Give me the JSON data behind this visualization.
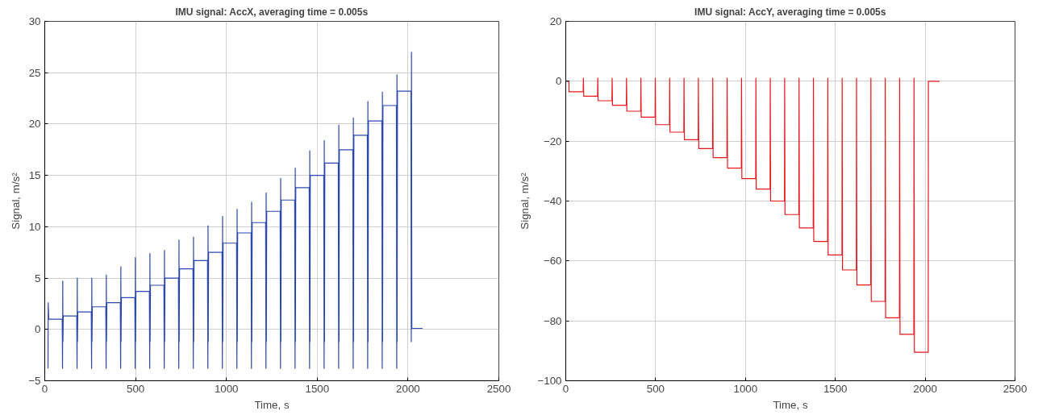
{
  "chart_data": [
    {
      "type": "line",
      "title": "IMU signal: AccX, averaging time = 0.005s",
      "xlabel": "Time, s",
      "ylabel": "Signal, m/s²",
      "xlim": [
        0,
        2500
      ],
      "xticks": [
        0,
        500,
        1000,
        1500,
        2000,
        2500
      ],
      "ylim": [
        -5,
        30
      ],
      "yticks": [
        -5,
        0,
        5,
        10,
        15,
        20,
        25,
        30
      ],
      "grid": true,
      "series": [
        {
          "color": "#2b48b0",
          "x": [
            18,
            19,
            22,
            96,
            98,
            99,
            100,
            102,
            176,
            178,
            179,
            180,
            182,
            256,
            258,
            259,
            260,
            262,
            336,
            338,
            339,
            340,
            342,
            416,
            418,
            419,
            420,
            422,
            496,
            498,
            499,
            500,
            502,
            576,
            578,
            579,
            580,
            582,
            656,
            658,
            659,
            660,
            662,
            736,
            738,
            739,
            740,
            742,
            816,
            818,
            819,
            820,
            822,
            896,
            898,
            899,
            900,
            902,
            976,
            978,
            979,
            980,
            982,
            1056,
            1058,
            1059,
            1060,
            1062,
            1136,
            1138,
            1139,
            1140,
            1142,
            1216,
            1218,
            1219,
            1220,
            1222,
            1296,
            1298,
            1299,
            1300,
            1302,
            1376,
            1378,
            1379,
            1380,
            1382,
            1456,
            1458,
            1459,
            1460,
            1462,
            1536,
            1538,
            1539,
            1540,
            1542,
            1616,
            1618,
            1619,
            1620,
            1622,
            1696,
            1698,
            1699,
            1700,
            1702,
            1776,
            1778,
            1779,
            1780,
            1782,
            1856,
            1858,
            1859,
            1860,
            1862,
            1936,
            1938,
            1939,
            1940,
            1942,
            2016,
            2018,
            2019,
            2021,
            2080
          ],
          "values": [
            -3.8,
            2.6,
            1.0,
            1.0,
            -3.8,
            4.7,
            -1.2,
            1.3,
            1.3,
            -3.8,
            5.0,
            -1.2,
            1.7,
            1.7,
            -3.8,
            5.0,
            -1.2,
            2.2,
            2.2,
            -3.8,
            5.3,
            -1.2,
            2.6,
            2.6,
            -3.8,
            6.1,
            -1.2,
            3.1,
            3.1,
            -3.8,
            7.0,
            -1.2,
            3.7,
            3.7,
            -3.8,
            7.4,
            -1.2,
            4.3,
            4.3,
            -3.8,
            7.7,
            -1.2,
            5.0,
            5.0,
            -3.8,
            8.7,
            -1.2,
            5.9,
            5.9,
            -3.8,
            9.0,
            -1.2,
            6.7,
            6.7,
            -3.8,
            10.1,
            -1.2,
            7.5,
            7.5,
            -3.8,
            11.0,
            -1.2,
            8.4,
            8.4,
            -3.8,
            11.7,
            -1.2,
            9.4,
            9.4,
            -3.8,
            12.4,
            -1.2,
            10.4,
            10.4,
            -3.8,
            13.3,
            -1.2,
            11.5,
            11.5,
            -3.8,
            14.7,
            -1.2,
            12.6,
            12.6,
            -3.8,
            15.7,
            -1.2,
            13.8,
            13.8,
            -3.8,
            17.4,
            -1.2,
            15.0,
            15.0,
            -3.8,
            18.4,
            -1.2,
            16.2,
            16.2,
            -3.8,
            19.9,
            -1.2,
            17.5,
            17.5,
            -3.8,
            20.6,
            -1.2,
            18.9,
            18.9,
            -3.8,
            22.2,
            -1.2,
            20.3,
            20.3,
            -3.8,
            23.1,
            -1.2,
            21.8,
            21.8,
            -3.8,
            24.8,
            -1.2,
            23.2,
            23.2,
            -1.2,
            27.0,
            0.1,
            0.1
          ]
        }
      ]
    },
    {
      "type": "line",
      "title": "IMU signal: AccY, averaging time = 0.005s",
      "xlabel": "Time, s",
      "ylabel": "Signal, m/s²",
      "xlim": [
        0,
        2500
      ],
      "xticks": [
        0,
        500,
        1000,
        1500,
        2000,
        2500
      ],
      "ylim": [
        -100,
        20
      ],
      "yticks": [
        -100,
        -80,
        -60,
        -40,
        -20,
        0,
        20
      ],
      "grid": true,
      "series": [
        {
          "color": "#e8161a",
          "x": [
            0,
            18,
            18,
            97,
            98,
            100,
            177,
            178,
            180,
            257,
            258,
            260,
            337,
            338,
            340,
            417,
            418,
            420,
            497,
            498,
            500,
            577,
            578,
            580,
            657,
            658,
            660,
            737,
            738,
            740,
            817,
            818,
            820,
            897,
            898,
            900,
            977,
            978,
            980,
            1057,
            1058,
            1060,
            1137,
            1138,
            1140,
            1217,
            1218,
            1220,
            1297,
            1298,
            1300,
            1377,
            1378,
            1380,
            1457,
            1458,
            1460,
            1537,
            1538,
            1540,
            1617,
            1618,
            1620,
            1697,
            1698,
            1700,
            1777,
            1778,
            1780,
            1857,
            1858,
            1860,
            1937,
            1938,
            1940,
            2017,
            2018,
            2080
          ],
          "values": [
            0,
            0,
            -3.5,
            -3.5,
            1,
            -5,
            -5,
            1,
            -6.5,
            -6.5,
            1,
            -8,
            -8,
            1,
            -10,
            -10,
            1,
            -12,
            -12,
            1,
            -14.5,
            -14.5,
            1,
            -17,
            -17,
            1,
            -19.5,
            -19.5,
            1,
            -22.5,
            -22.5,
            1,
            -25.5,
            -25.5,
            1,
            -29,
            -29,
            1,
            -32.5,
            -32.5,
            1,
            -36,
            -36,
            1,
            -40,
            -40,
            1,
            -44.5,
            -44.5,
            1,
            -49,
            -49,
            1,
            -53.5,
            -53.5,
            1,
            -58,
            -58,
            1,
            -63,
            -63,
            1,
            -68,
            -68,
            1,
            -73.5,
            -73.5,
            1,
            -79,
            -79,
            1,
            -84.5,
            -84.5,
            1,
            -90.5,
            -90.5,
            0,
            0
          ]
        }
      ]
    }
  ]
}
